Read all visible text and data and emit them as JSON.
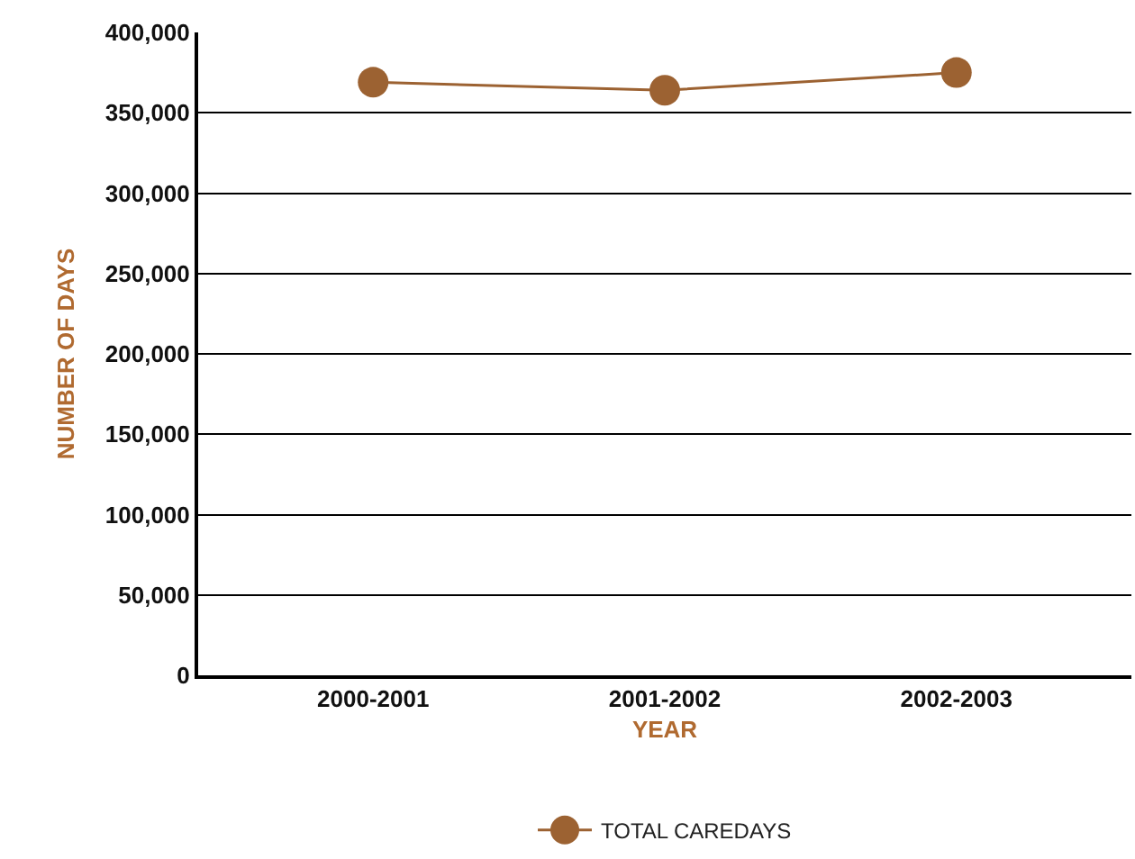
{
  "chart_data": {
    "type": "line",
    "xlabel": "YEAR",
    "ylabel": "NUMBER OF DAYS",
    "categories": [
      "2000-2001",
      "2001-2002",
      "2002-2003"
    ],
    "series": [
      {
        "name": "TOTAL CAREDAYS",
        "color": "#9c6232",
        "values": [
          369000,
          364000,
          375000
        ]
      }
    ],
    "ylim": [
      0,
      400000
    ],
    "yticks": [
      {
        "value": 0,
        "label": "0"
      },
      {
        "value": 50000,
        "label": "50,000"
      },
      {
        "value": 100000,
        "label": "100,000"
      },
      {
        "value": 150000,
        "label": "150,000"
      },
      {
        "value": 200000,
        "label": "200,000"
      },
      {
        "value": 250000,
        "label": "250,000"
      },
      {
        "value": 300000,
        "label": "300,000"
      },
      {
        "value": 350000,
        "label": "350,000"
      },
      {
        "value": 400000,
        "label": "400,000"
      }
    ],
    "grid": "y",
    "legend": "bottom",
    "marker": "circle",
    "line_style": "solid"
  }
}
